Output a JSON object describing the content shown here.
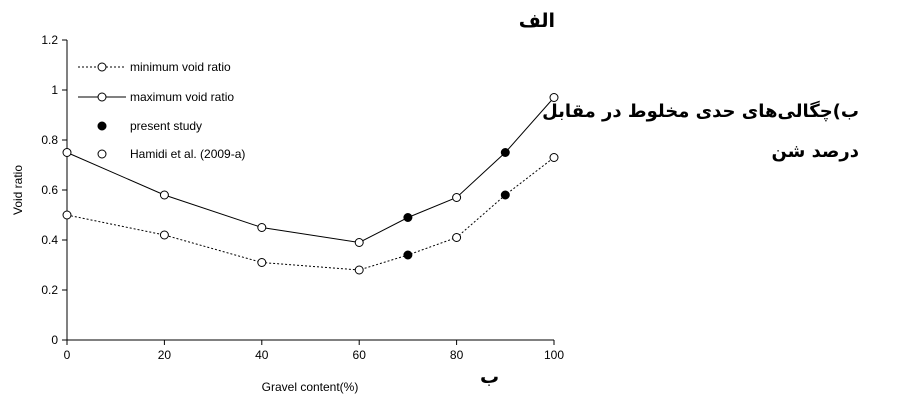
{
  "chart_data": {
    "type": "line",
    "x": [
      0,
      20,
      40,
      60,
      70,
      80,
      90,
      100
    ],
    "series": [
      {
        "name": "minimum void ratio",
        "style": "dotted-line-open-marker",
        "values": [
          0.5,
          0.42,
          0.31,
          0.28,
          0.34,
          0.41,
          0.58,
          0.73
        ]
      },
      {
        "name": "maximum void ratio",
        "style": "solid-line-open-marker",
        "values": [
          0.75,
          0.58,
          0.45,
          0.39,
          0.49,
          0.57,
          0.75,
          0.97
        ]
      }
    ],
    "points": [
      {
        "name": "present study",
        "style": "filled-marker",
        "x": [
          70,
          70,
          90,
          90
        ],
        "y": [
          0.34,
          0.49,
          0.58,
          0.75
        ]
      },
      {
        "name": "Hamidi et al. (2009-a)",
        "style": "open-marker",
        "x": [
          0,
          0,
          20,
          20,
          40,
          40,
          60,
          60,
          80,
          80,
          100,
          100
        ],
        "y": [
          0.5,
          0.75,
          0.42,
          0.58,
          0.31,
          0.45,
          0.28,
          0.39,
          0.41,
          0.57,
          0.73,
          0.97
        ]
      }
    ],
    "xlabel": "Gravel content(%)",
    "ylabel": "Void ratio",
    "xlim": [
      0,
      100
    ],
    "ylim": [
      0,
      1.2
    ],
    "xticks": [
      0,
      20,
      40,
      60,
      80,
      100
    ],
    "yticks": [
      0,
      0.2,
      0.4,
      0.6,
      0.8,
      1,
      1.2
    ],
    "ytick_labels": [
      "0",
      "0.2",
      "0.4",
      "0.6",
      "0.8",
      "1",
      "1.2"
    ],
    "grid": false,
    "legend_position": "top-left"
  },
  "labels": {
    "alef": "الف",
    "be": "ب",
    "caption": "ب)چگالی‌های حدی مخلوط در مقابل درصد شن"
  },
  "colors": {
    "line": "#000000",
    "open_fill": "#ffffff",
    "filled": "#000000"
  }
}
